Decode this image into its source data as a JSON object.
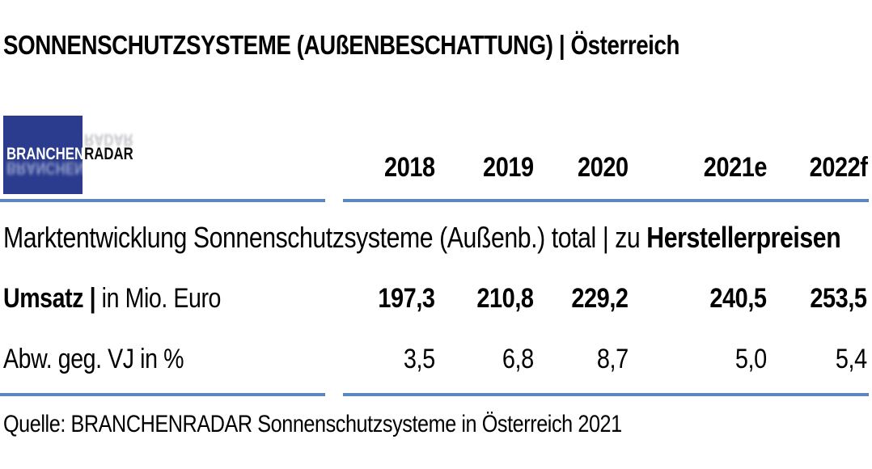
{
  "title": "SONNENSCHUTZSYSTEME (AUßENBESCHATTUNG) | Österreich",
  "logo": {
    "part1": "BRANCHEN",
    "part2": "RADAR"
  },
  "table": {
    "year_headers": [
      "2018",
      "2019",
      "2020",
      "2021e",
      "2022f"
    ],
    "section_header_regular": "Marktentwicklung Sonnenschutzsysteme (Außenb.) total | zu ",
    "section_header_bold": "Herstellerpreisen",
    "rows": [
      {
        "label_bold": "Umsatz | ",
        "label_regular": "in Mio. Euro",
        "values": [
          "197,3",
          "210,8",
          "229,2",
          "240,5",
          "253,5"
        ]
      },
      {
        "label_bold": "",
        "label_regular": "Abw. geg. VJ in %",
        "values": [
          "3,5",
          "6,8",
          "8,7",
          "5,0",
          "5,4"
        ]
      }
    ]
  },
  "source": "Quelle: BRANCHENRADAR Sonnenschutzsysteme in Österreich 2021",
  "colors": {
    "accent_line": "#5b87bd",
    "logo_blue": "#2b3c8e",
    "text": "#000000"
  },
  "chart_data": {
    "type": "table",
    "title": "SONNENSCHUTZSYSTEME (AUßENBESCHATTUNG) | Österreich",
    "subtitle": "Marktentwicklung Sonnenschutzsysteme (Außenb.) total | zu Herstellerpreisen",
    "categories": [
      "2018",
      "2019",
      "2020",
      "2021e",
      "2022f"
    ],
    "series": [
      {
        "name": "Umsatz | in Mio. Euro",
        "values": [
          197.3,
          210.8,
          229.2,
          240.5,
          253.5
        ]
      },
      {
        "name": "Abw. geg. VJ in %",
        "values": [
          3.5,
          6.8,
          8.7,
          5.0,
          5.4
        ]
      }
    ],
    "source": "Quelle: BRANCHENRADAR Sonnenschutzsysteme in Österreich 2021"
  }
}
